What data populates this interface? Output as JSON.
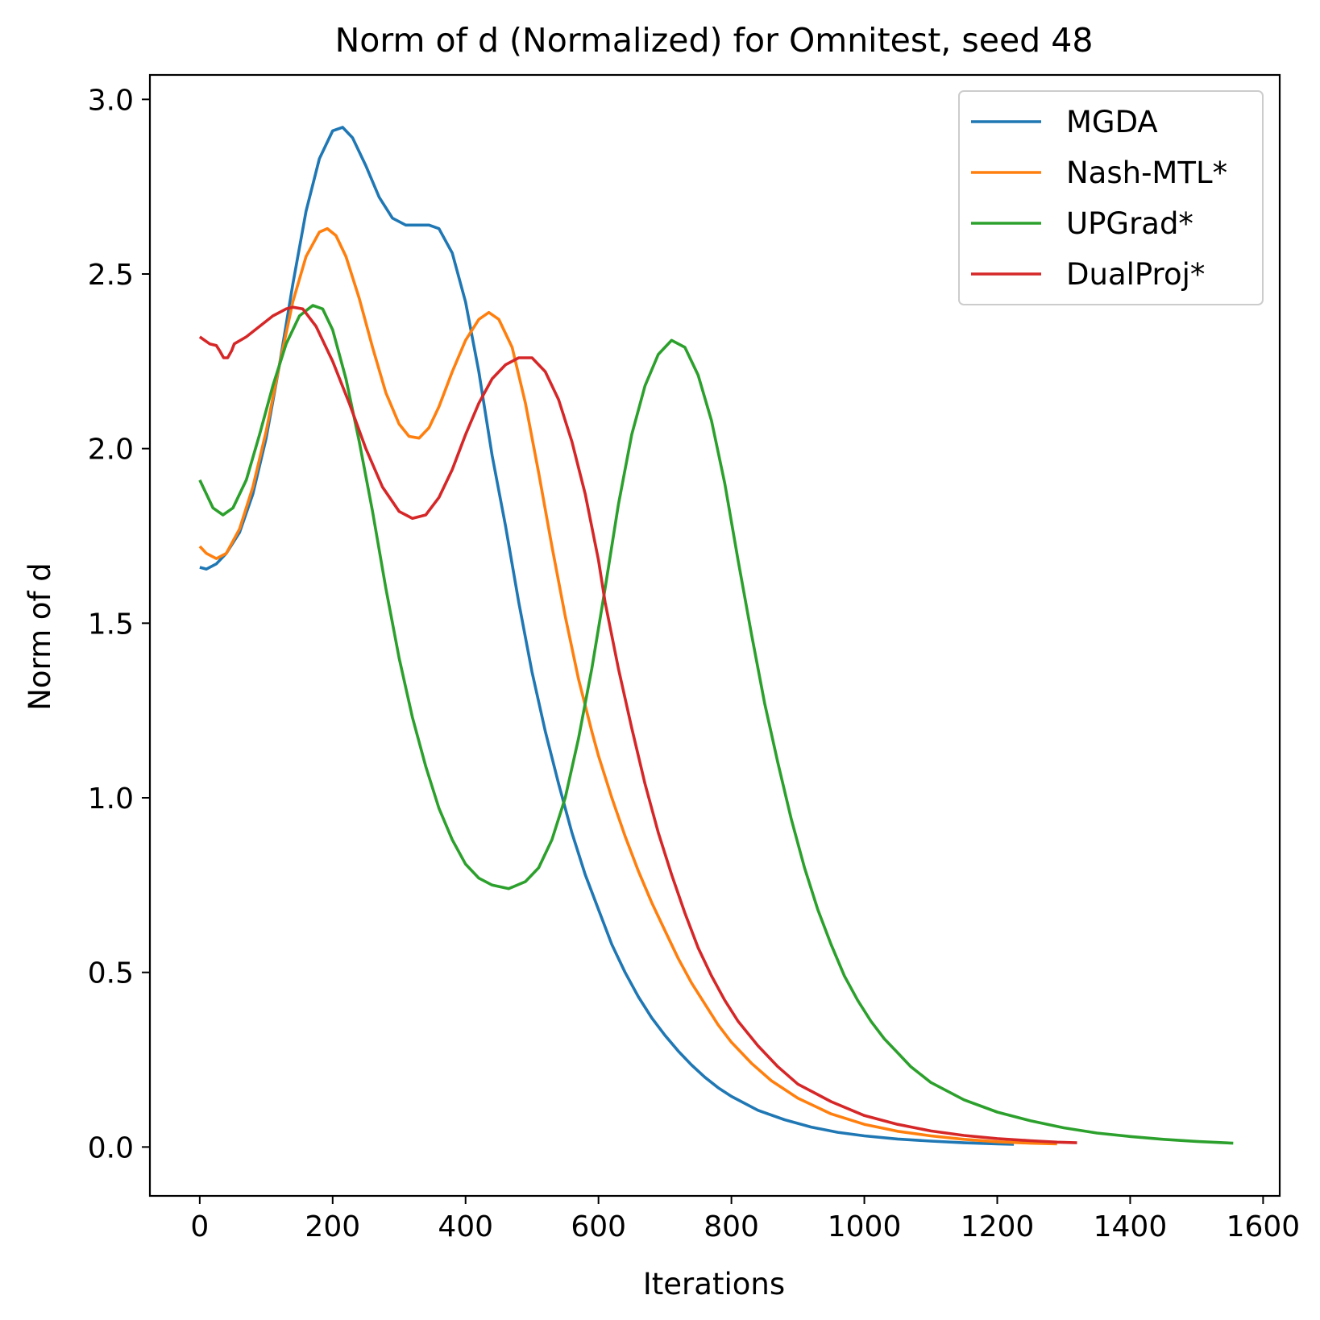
{
  "chart_data": {
    "type": "line",
    "title": "Norm of d (Normalized) for Omnitest, seed 48",
    "xlabel": "Iterations",
    "ylabel": "Norm of d",
    "xlim": [
      -75,
      1625
    ],
    "ylim": [
      -0.14,
      3.07
    ],
    "xticks": [
      0,
      200,
      400,
      600,
      800,
      1000,
      1200,
      1400,
      1600
    ],
    "xtick_labels": [
      "0",
      "200",
      "400",
      "600",
      "800",
      "1000",
      "1200",
      "1400",
      "1600"
    ],
    "yticks": [
      0.0,
      0.5,
      1.0,
      1.5,
      2.0,
      2.5,
      3.0
    ],
    "ytick_labels": [
      "0.0",
      "0.5",
      "1.0",
      "1.5",
      "2.0",
      "2.5",
      "3.0"
    ],
    "legend_position": "upper right",
    "series": [
      {
        "name": "MGDA",
        "color": "#1f77b4",
        "points": [
          [
            0,
            1.66
          ],
          [
            10,
            1.655
          ],
          [
            25,
            1.67
          ],
          [
            40,
            1.7
          ],
          [
            60,
            1.76
          ],
          [
            80,
            1.87
          ],
          [
            100,
            2.03
          ],
          [
            120,
            2.24
          ],
          [
            140,
            2.47
          ],
          [
            160,
            2.68
          ],
          [
            180,
            2.83
          ],
          [
            200,
            2.91
          ],
          [
            215,
            2.92
          ],
          [
            230,
            2.89
          ],
          [
            250,
            2.81
          ],
          [
            270,
            2.72
          ],
          [
            290,
            2.66
          ],
          [
            310,
            2.64
          ],
          [
            330,
            2.64
          ],
          [
            345,
            2.64
          ],
          [
            360,
            2.63
          ],
          [
            380,
            2.56
          ],
          [
            400,
            2.42
          ],
          [
            420,
            2.22
          ],
          [
            440,
            1.98
          ],
          [
            460,
            1.78
          ],
          [
            480,
            1.56
          ],
          [
            500,
            1.36
          ],
          [
            520,
            1.19
          ],
          [
            540,
            1.04
          ],
          [
            560,
            0.9
          ],
          [
            580,
            0.78
          ],
          [
            600,
            0.68
          ],
          [
            620,
            0.58
          ],
          [
            640,
            0.5
          ],
          [
            660,
            0.43
          ],
          [
            680,
            0.37
          ],
          [
            700,
            0.32
          ],
          [
            720,
            0.275
          ],
          [
            740,
            0.235
          ],
          [
            760,
            0.2
          ],
          [
            780,
            0.17
          ],
          [
            800,
            0.145
          ],
          [
            840,
            0.105
          ],
          [
            880,
            0.078
          ],
          [
            920,
            0.057
          ],
          [
            960,
            0.042
          ],
          [
            1000,
            0.032
          ],
          [
            1050,
            0.023
          ],
          [
            1100,
            0.017
          ],
          [
            1150,
            0.012
          ],
          [
            1200,
            0.009
          ],
          [
            1225,
            0.008
          ]
        ]
      },
      {
        "name": "Nash-MTL*",
        "color": "#ff7f0e",
        "points": [
          [
            0,
            1.72
          ],
          [
            10,
            1.7
          ],
          [
            25,
            1.685
          ],
          [
            40,
            1.7
          ],
          [
            60,
            1.77
          ],
          [
            80,
            1.89
          ],
          [
            100,
            2.05
          ],
          [
            120,
            2.24
          ],
          [
            140,
            2.42
          ],
          [
            160,
            2.55
          ],
          [
            180,
            2.62
          ],
          [
            192,
            2.63
          ],
          [
            205,
            2.61
          ],
          [
            220,
            2.55
          ],
          [
            240,
            2.43
          ],
          [
            260,
            2.29
          ],
          [
            280,
            2.16
          ],
          [
            300,
            2.07
          ],
          [
            315,
            2.035
          ],
          [
            330,
            2.03
          ],
          [
            345,
            2.06
          ],
          [
            360,
            2.12
          ],
          [
            380,
            2.22
          ],
          [
            400,
            2.31
          ],
          [
            420,
            2.37
          ],
          [
            435,
            2.39
          ],
          [
            450,
            2.37
          ],
          [
            470,
            2.29
          ],
          [
            490,
            2.13
          ],
          [
            510,
            1.93
          ],
          [
            530,
            1.72
          ],
          [
            550,
            1.52
          ],
          [
            570,
            1.34
          ],
          [
            590,
            1.19
          ],
          [
            600,
            1.12
          ],
          [
            620,
            1.0
          ],
          [
            640,
            0.89
          ],
          [
            660,
            0.79
          ],
          [
            680,
            0.7
          ],
          [
            700,
            0.62
          ],
          [
            720,
            0.54
          ],
          [
            740,
            0.47
          ],
          [
            760,
            0.41
          ],
          [
            780,
            0.35
          ],
          [
            800,
            0.3
          ],
          [
            830,
            0.24
          ],
          [
            860,
            0.19
          ],
          [
            900,
            0.14
          ],
          [
            950,
            0.095
          ],
          [
            1000,
            0.065
          ],
          [
            1050,
            0.045
          ],
          [
            1100,
            0.032
          ],
          [
            1150,
            0.022
          ],
          [
            1200,
            0.015
          ],
          [
            1250,
            0.011
          ],
          [
            1290,
            0.009
          ]
        ]
      },
      {
        "name": "UPGrad*",
        "color": "#2ca02c",
        "points": [
          [
            0,
            1.91
          ],
          [
            10,
            1.87
          ],
          [
            20,
            1.83
          ],
          [
            35,
            1.81
          ],
          [
            50,
            1.83
          ],
          [
            70,
            1.91
          ],
          [
            90,
            2.04
          ],
          [
            110,
            2.18
          ],
          [
            130,
            2.3
          ],
          [
            150,
            2.38
          ],
          [
            170,
            2.41
          ],
          [
            185,
            2.4
          ],
          [
            200,
            2.34
          ],
          [
            220,
            2.2
          ],
          [
            240,
            2.02
          ],
          [
            260,
            1.82
          ],
          [
            280,
            1.6
          ],
          [
            300,
            1.4
          ],
          [
            320,
            1.23
          ],
          [
            340,
            1.09
          ],
          [
            360,
            0.97
          ],
          [
            380,
            0.88
          ],
          [
            400,
            0.81
          ],
          [
            420,
            0.77
          ],
          [
            440,
            0.75
          ],
          [
            465,
            0.74
          ],
          [
            490,
            0.76
          ],
          [
            510,
            0.8
          ],
          [
            530,
            0.88
          ],
          [
            550,
            1.0
          ],
          [
            570,
            1.17
          ],
          [
            590,
            1.37
          ],
          [
            610,
            1.6
          ],
          [
            630,
            1.84
          ],
          [
            650,
            2.04
          ],
          [
            670,
            2.18
          ],
          [
            690,
            2.27
          ],
          [
            710,
            2.31
          ],
          [
            730,
            2.29
          ],
          [
            750,
            2.21
          ],
          [
            770,
            2.08
          ],
          [
            790,
            1.9
          ],
          [
            810,
            1.68
          ],
          [
            830,
            1.47
          ],
          [
            850,
            1.27
          ],
          [
            870,
            1.1
          ],
          [
            890,
            0.94
          ],
          [
            910,
            0.8
          ],
          [
            930,
            0.68
          ],
          [
            950,
            0.58
          ],
          [
            970,
            0.49
          ],
          [
            990,
            0.42
          ],
          [
            1010,
            0.36
          ],
          [
            1030,
            0.31
          ],
          [
            1050,
            0.27
          ],
          [
            1070,
            0.23
          ],
          [
            1100,
            0.185
          ],
          [
            1150,
            0.135
          ],
          [
            1200,
            0.1
          ],
          [
            1250,
            0.075
          ],
          [
            1300,
            0.055
          ],
          [
            1350,
            0.04
          ],
          [
            1400,
            0.03
          ],
          [
            1450,
            0.022
          ],
          [
            1500,
            0.016
          ],
          [
            1555,
            0.011
          ]
        ]
      },
      {
        "name": "DualProj*",
        "color": "#d62728",
        "points": [
          [
            0,
            2.32
          ],
          [
            15,
            2.3
          ],
          [
            25,
            2.295
          ],
          [
            30,
            2.28
          ],
          [
            36,
            2.26
          ],
          [
            42,
            2.26
          ],
          [
            48,
            2.28
          ],
          [
            52,
            2.3
          ],
          [
            70,
            2.32
          ],
          [
            90,
            2.35
          ],
          [
            110,
            2.38
          ],
          [
            130,
            2.4
          ],
          [
            140,
            2.405
          ],
          [
            155,
            2.4
          ],
          [
            175,
            2.35
          ],
          [
            200,
            2.25
          ],
          [
            225,
            2.13
          ],
          [
            250,
            2.0
          ],
          [
            275,
            1.89
          ],
          [
            300,
            1.82
          ],
          [
            320,
            1.8
          ],
          [
            340,
            1.81
          ],
          [
            360,
            1.86
          ],
          [
            380,
            1.94
          ],
          [
            400,
            2.04
          ],
          [
            420,
            2.13
          ],
          [
            440,
            2.2
          ],
          [
            460,
            2.24
          ],
          [
            480,
            2.26
          ],
          [
            500,
            2.26
          ],
          [
            520,
            2.22
          ],
          [
            540,
            2.14
          ],
          [
            560,
            2.02
          ],
          [
            580,
            1.87
          ],
          [
            600,
            1.68
          ],
          [
            610,
            1.56
          ],
          [
            630,
            1.37
          ],
          [
            650,
            1.2
          ],
          [
            670,
            1.04
          ],
          [
            690,
            0.9
          ],
          [
            710,
            0.78
          ],
          [
            730,
            0.67
          ],
          [
            750,
            0.57
          ],
          [
            770,
            0.49
          ],
          [
            790,
            0.42
          ],
          [
            810,
            0.36
          ],
          [
            840,
            0.29
          ],
          [
            870,
            0.23
          ],
          [
            900,
            0.18
          ],
          [
            950,
            0.13
          ],
          [
            1000,
            0.09
          ],
          [
            1050,
            0.065
          ],
          [
            1100,
            0.046
          ],
          [
            1150,
            0.033
          ],
          [
            1200,
            0.024
          ],
          [
            1250,
            0.018
          ],
          [
            1290,
            0.014
          ],
          [
            1320,
            0.012
          ]
        ]
      }
    ]
  }
}
